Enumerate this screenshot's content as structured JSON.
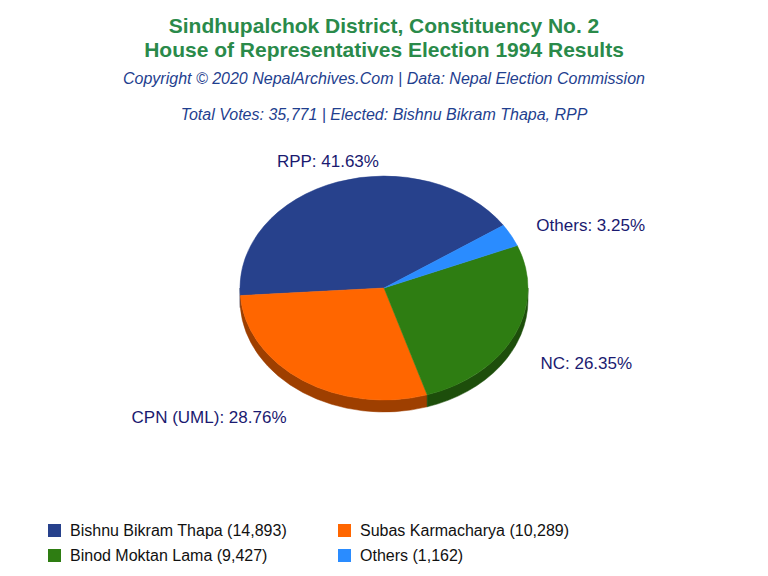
{
  "chart_data": {
    "type": "pie",
    "title": "Sindhupalchok District, Constituency No. 2",
    "subtitle": "House of Representatives Election 1994 Results",
    "caption": "Copyright © 2020 NepalArchives.Com | Data: Nepal Election Commission",
    "annotation": "Total Votes: 35,771 | Elected: Bishnu Bikram Thapa, RPP",
    "values": [
      41.63,
      28.76,
      26.35,
      3.25
    ],
    "value_labels": [
      "RPP: 41.63%",
      "CPN (UML): 28.76%",
      "NC: 26.35%",
      "Others: 3.25%"
    ],
    "colors": [
      "#27418c",
      "#ff6600",
      "#2e7d12",
      "#2a8cff"
    ],
    "data_labels": true,
    "legend": "bottom",
    "legend_labels": [
      "Bishnu Bikram Thapa (14,893)",
      "Subas Karmacharya (10,289)",
      "Binod Moktan Lama (9,427)",
      "Others (1,162)"
    ]
  }
}
